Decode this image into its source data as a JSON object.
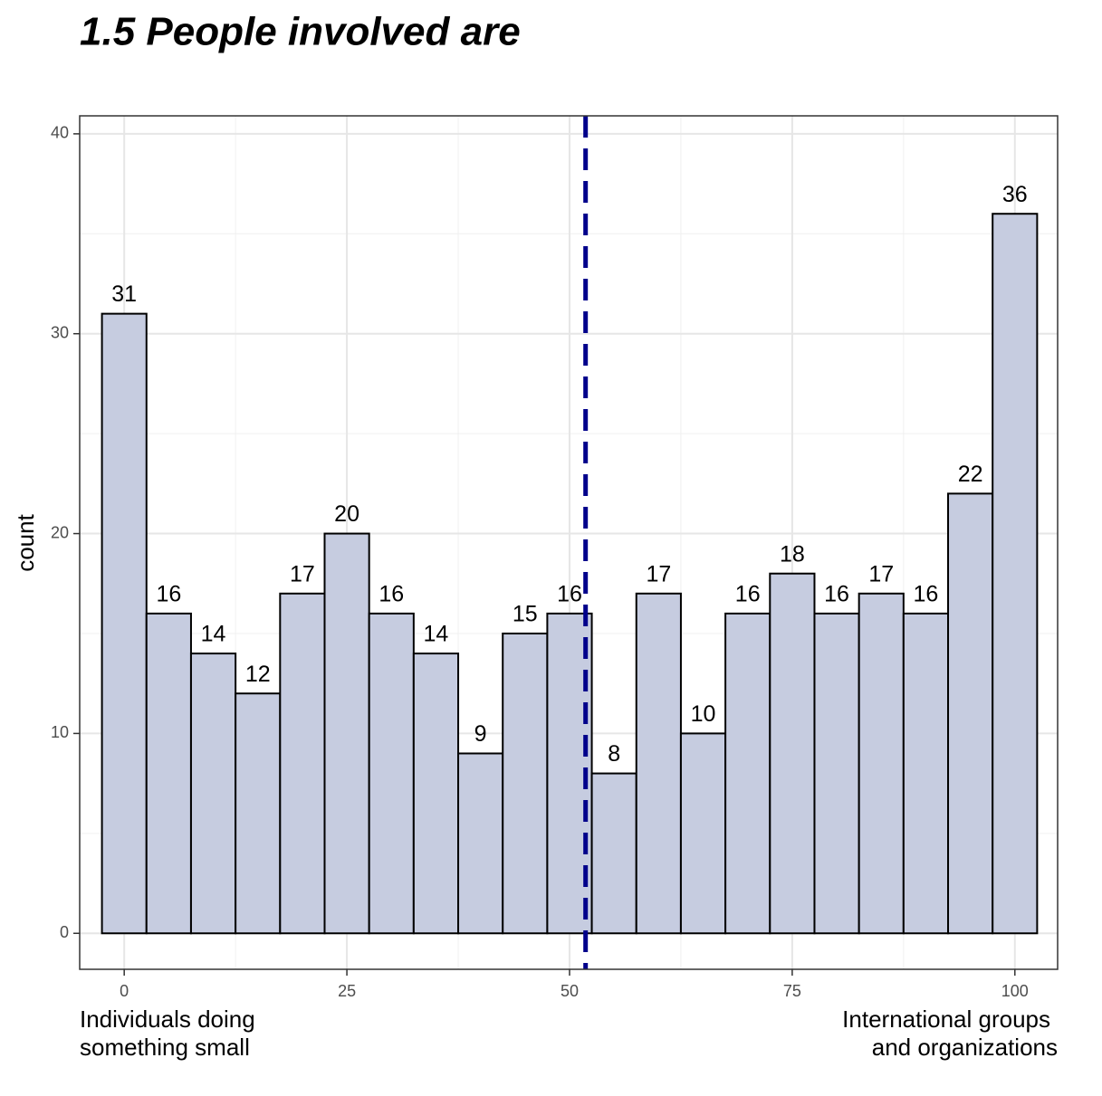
{
  "chart_data": {
    "type": "histogram",
    "title": "1.5 People involved are",
    "y_label": "count",
    "x_label_left": [
      "Individuals doing",
      "something small"
    ],
    "x_label_right": [
      "International groups",
      "and organizations"
    ],
    "bins": [
      -2.5,
      2.5,
      7.5,
      12.5,
      17.5,
      22.5,
      27.5,
      32.5,
      37.5,
      42.5,
      47.5,
      52.5,
      57.5,
      62.5,
      67.5,
      72.5,
      77.5,
      82.5,
      87.5,
      92.5,
      97.5,
      102.5
    ],
    "values": [
      31,
      16,
      14,
      12,
      17,
      20,
      16,
      14,
      9,
      15,
      16,
      8,
      17,
      10,
      16,
      18,
      16,
      17,
      16,
      22,
      36
    ],
    "color": "#c6cce0",
    "edge_color": "#000000",
    "vline": 51.8,
    "vline_color": "#00008b",
    "xlim": [
      -5,
      104.8
    ],
    "ylim": [
      -1.8,
      40.9
    ],
    "xticks": [
      0,
      25,
      50,
      75,
      100
    ],
    "yticks": [
      0,
      10,
      20,
      30,
      40
    ],
    "grid": true
  }
}
